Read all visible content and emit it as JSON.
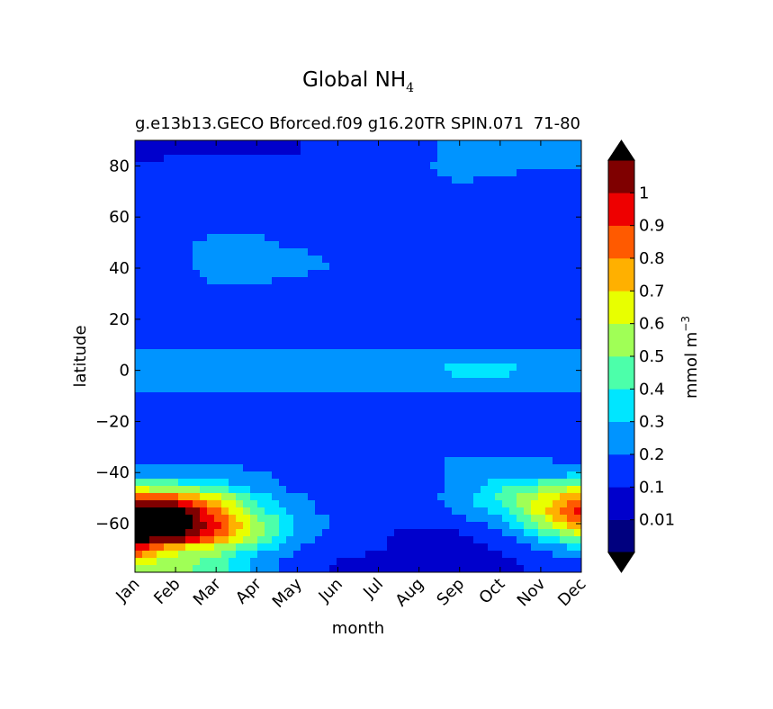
{
  "chart_data": {
    "type": "heatmap",
    "title": "Global NH",
    "title_subscript": "4",
    "subtitle_left": "g.e13b13.GECO Bforced.f09 g16.20TR SPIN.071",
    "subtitle_right": "71-80",
    "xlabel": "month",
    "ylabel": "latitude",
    "x_ticks": [
      "Jan",
      "Feb",
      "Mar",
      "Apr",
      "May",
      "Jun",
      "Jul",
      "Aug",
      "Sep",
      "Oct",
      "Nov",
      "Dec"
    ],
    "y_ticks": [
      80,
      60,
      40,
      20,
      0,
      -20,
      -40,
      -60
    ],
    "y_tick_labels": [
      "80",
      "60",
      "40",
      "20",
      "0",
      "−20",
      "−40",
      "−60"
    ],
    "ylim": [
      -79,
      90
    ],
    "xlim": [
      1,
      12
    ],
    "colorbar": {
      "label": "mmol m",
      "label_exponent": "−3",
      "levels": [
        0.01,
        0.1,
        0.2,
        0.3,
        0.4,
        0.5,
        0.6,
        0.7,
        0.8,
        0.9,
        1
      ],
      "tick_labels": [
        "0.01",
        "0.1",
        "0.2",
        "0.3",
        "0.4",
        "0.5",
        "0.6",
        "0.7",
        "0.8",
        "0.9",
        "1"
      ],
      "extend": "both",
      "colors": [
        "#00007f",
        "#0000cc",
        "#0030ff",
        "#0094ff",
        "#00e6ff",
        "#4cffaa",
        "#a0ff56",
        "#e8ff00",
        "#ffb000",
        "#ff5a00",
        "#ee0000",
        "#7f0000"
      ],
      "under_color": "#000000",
      "over_color": "#000000"
    },
    "months": [
      1,
      2,
      3,
      4,
      5,
      6,
      7,
      8,
      9,
      10,
      11,
      12
    ],
    "latitudes": [
      90,
      85,
      80,
      75,
      70,
      65,
      60,
      55,
      50,
      45,
      40,
      35,
      30,
      25,
      20,
      15,
      10,
      5,
      0,
      -5,
      -10,
      -15,
      -20,
      -25,
      -30,
      -35,
      -40,
      -45,
      -50,
      -55,
      -60,
      -65,
      -70,
      -75,
      -79
    ],
    "values": [
      [
        0.01,
        0.01,
        0.01,
        0.08,
        0.1,
        0.1,
        0.1,
        0.15,
        0.25,
        0.25,
        0.25,
        0.25
      ],
      [
        0.01,
        0.08,
        0.1,
        0.1,
        0.1,
        0.1,
        0.12,
        0.15,
        0.25,
        0.25,
        0.22,
        0.22
      ],
      [
        0.15,
        0.15,
        0.15,
        0.15,
        0.15,
        0.15,
        0.15,
        0.18,
        0.25,
        0.25,
        0.22,
        0.22
      ],
      [
        0.15,
        0.15,
        0.15,
        0.15,
        0.15,
        0.15,
        0.15,
        0.15,
        0.22,
        0.18,
        0.15,
        0.15
      ],
      [
        0.15,
        0.15,
        0.15,
        0.15,
        0.15,
        0.15,
        0.15,
        0.15,
        0.15,
        0.15,
        0.15,
        0.15
      ],
      [
        0.15,
        0.15,
        0.15,
        0.15,
        0.15,
        0.15,
        0.12,
        0.15,
        0.15,
        0.15,
        0.15,
        0.15
      ],
      [
        0.15,
        0.15,
        0.15,
        0.15,
        0.15,
        0.15,
        0.12,
        0.12,
        0.12,
        0.15,
        0.15,
        0.15
      ],
      [
        0.15,
        0.15,
        0.15,
        0.15,
        0.15,
        0.15,
        0.15,
        0.12,
        0.12,
        0.12,
        0.12,
        0.12
      ],
      [
        0.15,
        0.15,
        0.25,
        0.25,
        0.15,
        0.15,
        0.15,
        0.12,
        0.12,
        0.12,
        0.12,
        0.12
      ],
      [
        0.15,
        0.15,
        0.25,
        0.25,
        0.25,
        0.15,
        0.15,
        0.12,
        0.12,
        0.12,
        0.12,
        0.12
      ],
      [
        0.15,
        0.15,
        0.25,
        0.25,
        0.25,
        0.2,
        0.15,
        0.15,
        0.12,
        0.12,
        0.12,
        0.12
      ],
      [
        0.15,
        0.15,
        0.22,
        0.22,
        0.15,
        0.15,
        0.15,
        0.15,
        0.15,
        0.15,
        0.15,
        0.15
      ],
      [
        0.15,
        0.15,
        0.15,
        0.15,
        0.15,
        0.15,
        0.15,
        0.15,
        0.15,
        0.15,
        0.15,
        0.15
      ],
      [
        0.12,
        0.12,
        0.12,
        0.12,
        0.12,
        0.12,
        0.12,
        0.12,
        0.12,
        0.12,
        0.12,
        0.12
      ],
      [
        0.12,
        0.12,
        0.12,
        0.12,
        0.12,
        0.12,
        0.12,
        0.12,
        0.12,
        0.12,
        0.12,
        0.12
      ],
      [
        0.15,
        0.15,
        0.15,
        0.15,
        0.15,
        0.15,
        0.15,
        0.15,
        0.15,
        0.15,
        0.15,
        0.15
      ],
      [
        0.15,
        0.15,
        0.15,
        0.15,
        0.15,
        0.15,
        0.15,
        0.15,
        0.15,
        0.15,
        0.15,
        0.15
      ],
      [
        0.25,
        0.25,
        0.25,
        0.25,
        0.25,
        0.25,
        0.25,
        0.25,
        0.25,
        0.25,
        0.25,
        0.25
      ],
      [
        0.25,
        0.25,
        0.25,
        0.25,
        0.25,
        0.25,
        0.25,
        0.25,
        0.35,
        0.35,
        0.25,
        0.25
      ],
      [
        0.25,
        0.25,
        0.25,
        0.25,
        0.25,
        0.25,
        0.25,
        0.25,
        0.25,
        0.25,
        0.25,
        0.25
      ],
      [
        0.15,
        0.15,
        0.15,
        0.15,
        0.15,
        0.15,
        0.15,
        0.15,
        0.15,
        0.15,
        0.15,
        0.15
      ],
      [
        0.12,
        0.12,
        0.12,
        0.12,
        0.12,
        0.12,
        0.12,
        0.12,
        0.12,
        0.12,
        0.12,
        0.12
      ],
      [
        0.12,
        0.12,
        0.12,
        0.12,
        0.12,
        0.12,
        0.12,
        0.12,
        0.12,
        0.12,
        0.12,
        0.12
      ],
      [
        0.15,
        0.15,
        0.15,
        0.15,
        0.15,
        0.15,
        0.15,
        0.15,
        0.15,
        0.15,
        0.15,
        0.15
      ],
      [
        0.15,
        0.15,
        0.15,
        0.15,
        0.15,
        0.15,
        0.15,
        0.15,
        0.15,
        0.15,
        0.15,
        0.15
      ],
      [
        0.15,
        0.15,
        0.15,
        0.15,
        0.15,
        0.15,
        0.15,
        0.15,
        0.22,
        0.22,
        0.22,
        0.15
      ],
      [
        0.25,
        0.25,
        0.25,
        0.22,
        0.15,
        0.15,
        0.15,
        0.15,
        0.22,
        0.25,
        0.25,
        0.25
      ],
      [
        0.45,
        0.45,
        0.35,
        0.25,
        0.15,
        0.15,
        0.15,
        0.15,
        0.22,
        0.35,
        0.45,
        0.55
      ],
      [
        0.95,
        0.85,
        0.65,
        0.35,
        0.22,
        0.15,
        0.15,
        0.15,
        0.25,
        0.45,
        0.65,
        0.85
      ],
      [
        1.2,
        1.2,
        0.85,
        0.45,
        0.25,
        0.15,
        0.15,
        0.15,
        0.22,
        0.35,
        0.65,
        0.95
      ],
      [
        1.2,
        1.2,
        0.95,
        0.55,
        0.3,
        0.18,
        0.12,
        0.12,
        0.15,
        0.25,
        0.55,
        0.85
      ],
      [
        1.2,
        1.2,
        0.85,
        0.55,
        0.25,
        0.15,
        0.1,
        0.08,
        0.08,
        0.15,
        0.35,
        0.55
      ],
      [
        0.95,
        0.65,
        0.55,
        0.35,
        0.2,
        0.12,
        0.12,
        0.05,
        0.05,
        0.12,
        0.2,
        0.3
      ],
      [
        0.65,
        0.55,
        0.45,
        0.25,
        0.15,
        0.1,
        0.05,
        0.01,
        0.01,
        0.05,
        0.15,
        0.2
      ],
      [
        0.55,
        0.55,
        0.45,
        0.25,
        0.15,
        0.08,
        0.05,
        0.01,
        0.01,
        0.05,
        0.12,
        0.15
      ]
    ]
  }
}
